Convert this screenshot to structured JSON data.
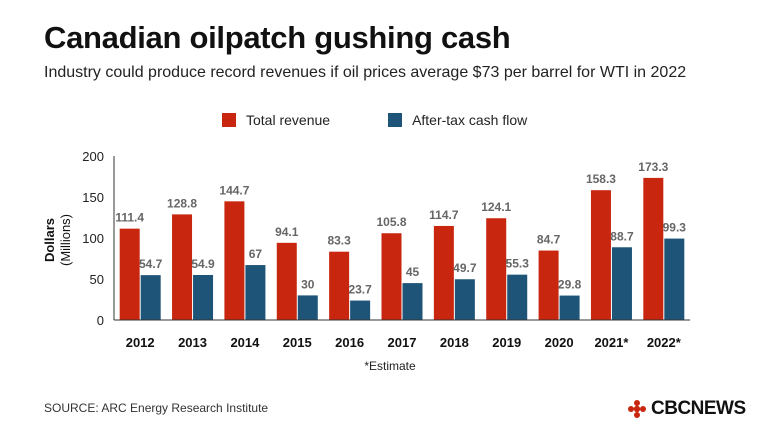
{
  "title": "Canadian oilpatch gushing cash",
  "subtitle": "Industry could produce record revenues if oil prices average $73 per barrel for WTI in 2022",
  "source": "SOURCE: ARC Energy Research Institute",
  "logo": "CBCNEWS",
  "colors": {
    "revenue": "#c8260f",
    "cashflow": "#1e5477",
    "logo_red": "#c8260f"
  },
  "chart_data": {
    "type": "bar",
    "categories": [
      "2012",
      "2013",
      "2014",
      "2015",
      "2016",
      "2017",
      "2018",
      "2019",
      "2020",
      "2021*",
      "2022*"
    ],
    "series": [
      {
        "name": "Total revenue",
        "values": [
          111.4,
          128.8,
          144.7,
          94.1,
          83.3,
          105.8,
          114.7,
          124.1,
          84.7,
          158.3,
          173.3
        ]
      },
      {
        "name": "After-tax cash flow",
        "values": [
          54.7,
          54.9,
          67,
          30,
          23.7,
          45,
          49.7,
          55.3,
          29.8,
          88.7,
          99.3
        ]
      }
    ],
    "ylabel_line1": "Dollars",
    "ylabel_line2": "(Millions)",
    "ylim": [
      0,
      200
    ],
    "yticks": [
      0,
      50,
      100,
      150,
      200
    ],
    "note": "*Estimate",
    "grid": false,
    "legend": "top"
  }
}
